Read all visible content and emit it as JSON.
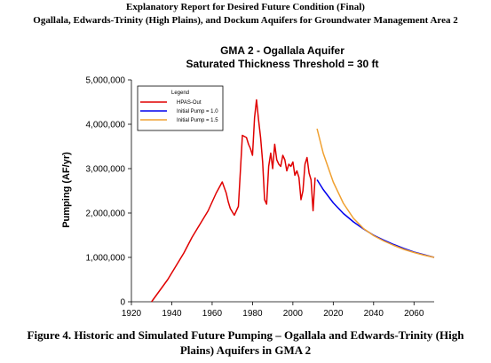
{
  "header": {
    "line1": "Explanatory Report for Desired Future Condition (Final)",
    "line2": "Ogallala, Edwards-Trinity (High Plains), and Dockum Aquifers for Groundwater Management Area 2"
  },
  "caption": {
    "line1": "Figure 4.  Historic and Simulated Future Pumping – Ogallala and Edwards-Trinity (High",
    "line2": "Plains) Aquifers in GMA 2"
  },
  "chart_data": {
    "type": "line",
    "title": "GMA 2 - Ogallala Aquifer",
    "subtitle": "Saturated Thickness Threshold = 30 ft",
    "xlabel": "",
    "ylabel": "Pumping (AF/yr)",
    "xlim": [
      1920,
      2070
    ],
    "ylim": [
      0,
      5000000
    ],
    "xticks": [
      "1920",
      "1940",
      "1960",
      "1980",
      "2000",
      "2020",
      "2040",
      "2060"
    ],
    "yticks": [
      "0",
      "1,000,000",
      "2,000,000",
      "3,000,000",
      "4,000,000",
      "5,000,000"
    ],
    "grid": false,
    "legend": {
      "title": "Legend",
      "position": "top-left",
      "entries": [
        "HPAS-Out",
        "Initial Pump = 1.0",
        "Initial Pump = 1.5"
      ]
    },
    "colors": {
      "HPAS-Out": "#e00000",
      "Initial Pump = 1.0": "#0000ee",
      "Initial Pump = 1.5": "#f0a030"
    },
    "series": [
      {
        "name": "HPAS-Out",
        "x": [
          1930,
          1934,
          1938,
          1942,
          1946,
          1950,
          1954,
          1958,
          1962,
          1965,
          1967,
          1968,
          1969,
          1971,
          1973,
          1975,
          1977,
          1978,
          1979,
          1980,
          1981,
          1982,
          1983,
          1984,
          1985,
          1986,
          1987,
          1988,
          1989,
          1990,
          1991,
          1992,
          1993,
          1994,
          1995,
          1996,
          1997,
          1998,
          1999,
          2000,
          2001,
          2002,
          2003,
          2004,
          2005,
          2006,
          2007,
          2008,
          2009,
          2010,
          2011
        ],
        "y": [
          0,
          250000,
          500000,
          800000,
          1100000,
          1450000,
          1750000,
          2050000,
          2450000,
          2700000,
          2450000,
          2250000,
          2100000,
          1950000,
          2150000,
          3750000,
          3700000,
          3550000,
          3450000,
          3300000,
          4150000,
          4550000,
          4100000,
          3700000,
          3150000,
          2300000,
          2200000,
          3050000,
          3350000,
          3000000,
          3550000,
          3200000,
          3100000,
          3050000,
          3300000,
          3200000,
          2950000,
          3100000,
          3050000,
          3150000,
          2850000,
          2950000,
          2800000,
          2300000,
          2500000,
          3100000,
          3250000,
          2900000,
          2750000,
          2050000,
          2800000
        ]
      },
      {
        "name": "Initial Pump = 1.0",
        "x": [
          2012,
          2015,
          2020,
          2025,
          2030,
          2035,
          2040,
          2045,
          2050,
          2055,
          2060,
          2065,
          2070
        ],
        "y": [
          2750000,
          2530000,
          2230000,
          1990000,
          1800000,
          1640000,
          1500000,
          1390000,
          1290000,
          1200000,
          1120000,
          1060000,
          1000000
        ]
      },
      {
        "name": "Initial Pump = 1.5",
        "x": [
          2012,
          2015,
          2020,
          2025,
          2030,
          2035,
          2040,
          2045,
          2050,
          2055,
          2060,
          2065,
          2070
        ],
        "y": [
          3900000,
          3350000,
          2700000,
          2220000,
          1880000,
          1650000,
          1490000,
          1370000,
          1270000,
          1180000,
          1110000,
          1050000,
          1000000
        ]
      }
    ]
  }
}
